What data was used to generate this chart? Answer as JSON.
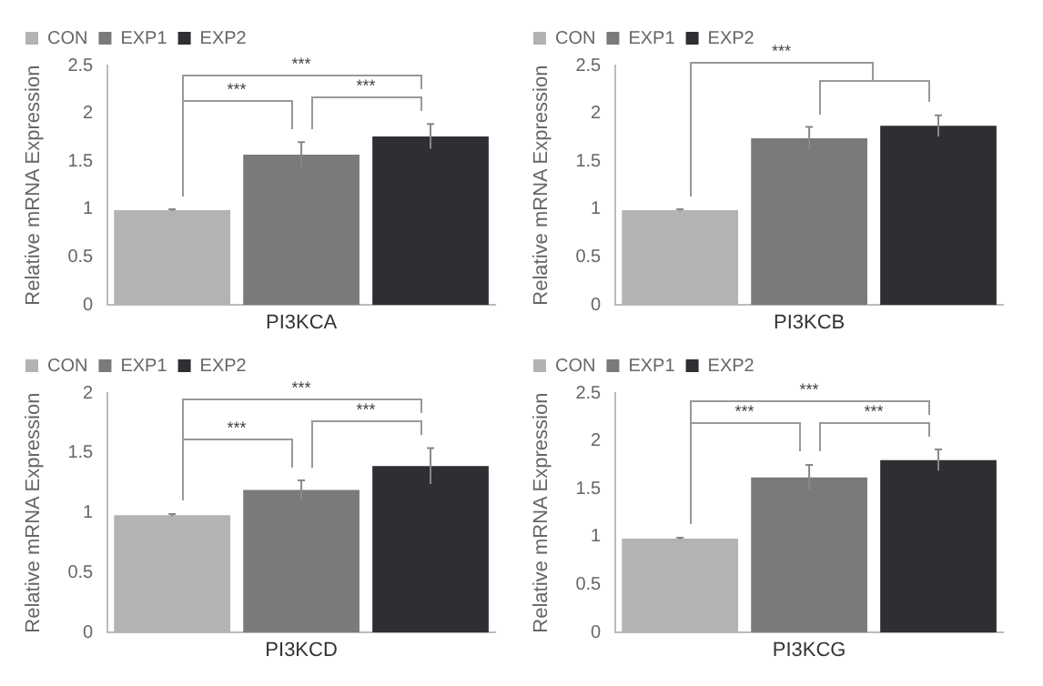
{
  "chart_data": [
    {
      "type": "bar",
      "categories": [
        null,
        null,
        null
      ],
      "xlabel": "PI3KCA",
      "stacked": true,
      "ylabel": "Relative mRNA Expression",
      "ylim": [
        0,
        2.5
      ],
      "yticks": [
        0,
        0.5,
        1,
        1.5,
        2,
        2.5
      ],
      "grid": false,
      "legend": "top left",
      "annotations": [
        "***",
        "***",
        "***"
      ],
      "series": [
        {
          "name": "CON",
          "color": "#b3b3b3",
          "values": [
            0.99,
            null,
            null
          ],
          "errors": [
            0.01,
            null,
            null
          ]
        },
        {
          "name": "EXP1",
          "color": "#7a7a7a",
          "values": [
            null,
            1.57,
            null
          ],
          "errors": [
            null,
            0.13,
            null
          ]
        },
        {
          "name": "EXP2",
          "color": "#2e2e33",
          "values": [
            null,
            null,
            1.76
          ],
          "errors": [
            null,
            null,
            0.13
          ]
        }
      ]
    },
    {
      "type": "bar",
      "categories": [
        null,
        null,
        null
      ],
      "xlabel": "PI3KCB",
      "stacked": true,
      "ylabel": "Relative mRNA Expression",
      "ylim": [
        0,
        2.5
      ],
      "yticks": [
        0,
        0.5,
        1,
        1.5,
        2,
        2.5
      ],
      "grid": false,
      "legend": "top left",
      "annotations": [
        "***"
      ],
      "series": [
        {
          "name": "CON",
          "color": "#b3b3b3",
          "values": [
            0.99,
            null,
            null
          ],
          "errors": [
            0.01,
            null,
            null
          ]
        },
        {
          "name": "EXP1",
          "color": "#7a7a7a",
          "values": [
            null,
            1.74,
            null
          ],
          "errors": [
            null,
            0.12,
            null
          ]
        },
        {
          "name": "EXP2",
          "color": "#2e2e33",
          "values": [
            null,
            null,
            1.87
          ],
          "errors": [
            null,
            null,
            0.11
          ]
        }
      ]
    },
    {
      "type": "bar",
      "categories": [
        null,
        null,
        null
      ],
      "xlabel": "PI3KCD",
      "stacked": true,
      "ylabel": "Relative mRNA Expression",
      "ylim": [
        0,
        2
      ],
      "yticks": [
        0,
        0.5,
        1,
        1.5,
        2
      ],
      "grid": false,
      "legend": "top left",
      "annotations": [
        "***",
        "***",
        "***"
      ],
      "series": [
        {
          "name": "CON",
          "color": "#b3b3b3",
          "values": [
            0.98,
            null,
            null
          ],
          "errors": [
            0.01,
            null,
            null
          ]
        },
        {
          "name": "EXP1",
          "color": "#7a7a7a",
          "values": [
            null,
            1.19,
            null
          ],
          "errors": [
            null,
            0.08,
            null
          ]
        },
        {
          "name": "EXP2",
          "color": "#2e2e33",
          "values": [
            null,
            null,
            1.39
          ],
          "errors": [
            null,
            null,
            0.15
          ]
        }
      ]
    },
    {
      "type": "bar",
      "categories": [
        null,
        null,
        null
      ],
      "xlabel": "PI3KCG",
      "stacked": true,
      "ylabel": "Relative mRNA Expression",
      "ylim": [
        0,
        2.5
      ],
      "yticks": [
        0,
        0.5,
        1,
        1.5,
        2,
        2.5
      ],
      "grid": false,
      "legend": "top left",
      "annotations": [
        "***",
        "***",
        "***"
      ],
      "series": [
        {
          "name": "CON",
          "color": "#b3b3b3",
          "values": [
            0.98,
            null,
            null
          ],
          "errors": [
            0.01,
            null,
            null
          ]
        },
        {
          "name": "EXP1",
          "color": "#7a7a7a",
          "values": [
            null,
            1.62,
            null
          ],
          "errors": [
            null,
            0.13,
            null
          ]
        },
        {
          "name": "EXP2",
          "color": "#2e2e33",
          "values": [
            null,
            null,
            1.8
          ],
          "errors": [
            null,
            null,
            0.11
          ]
        }
      ]
    }
  ]
}
